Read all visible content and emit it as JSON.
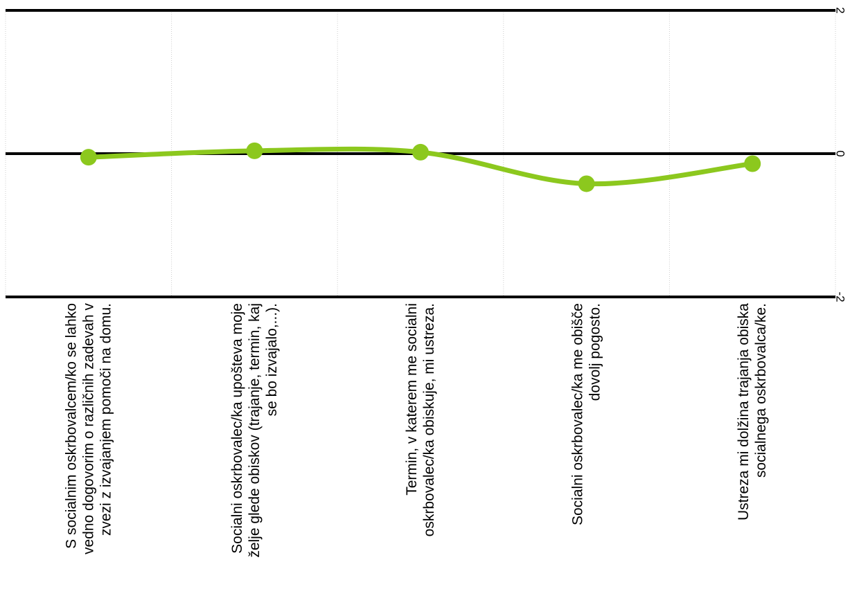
{
  "chart_data": {
    "type": "line",
    "orientation": "rotated-90-clockwise",
    "categories": [
      [
        "S socialnim oskrbovalcem/ko se lahko",
        "vedno dogovorim o različnih zadevah v",
        "zvezi z izvajanjem pomoči na domu."
      ],
      [
        "Socialni oskrbovalec/ka upošteva moje",
        "želje glede obiskov (trajanje, termin, kaj",
        "se bo izvajalo,...)."
      ],
      [
        "Termin, v katerem me socialni",
        "oskrbovalec/ka obiskuje, mi ustreza."
      ],
      [
        "Socialni oskrbovalec/ka me obišče",
        "dovolj pogosto."
      ],
      [
        "Ustreza mi dolžina trajanja obiska",
        "socialnega oskrbovalca/ke."
      ]
    ],
    "values": [
      -0.05,
      0.04,
      0.02,
      -0.42,
      -0.14
    ],
    "ylim": [
      -2,
      2
    ],
    "yticks": [
      "-2",
      "0",
      "2"
    ],
    "grid": true,
    "colors": {
      "series": "#8cc81e",
      "axis": "#000000",
      "grid": "#cccccc"
    }
  }
}
